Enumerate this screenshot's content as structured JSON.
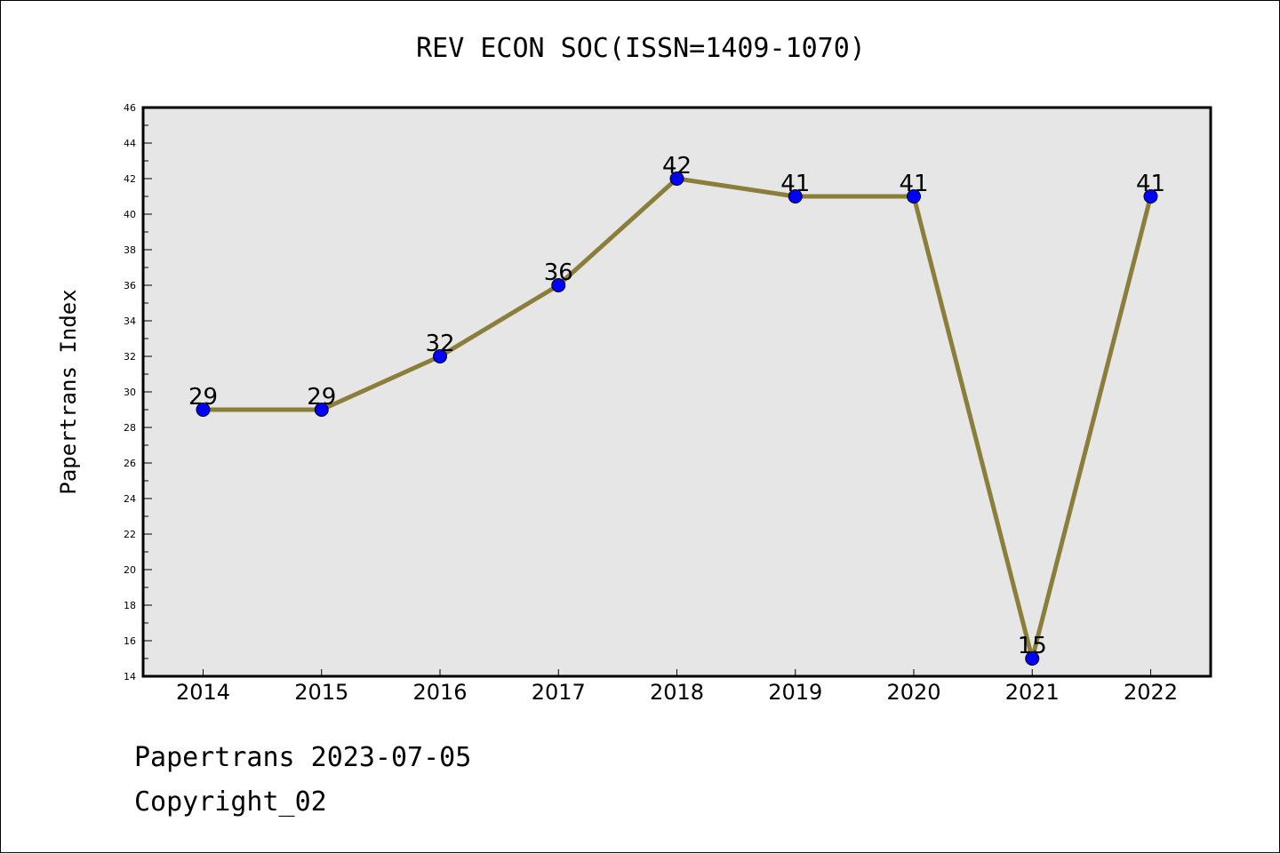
{
  "chart_data": {
    "type": "line",
    "title": "REV ECON SOC(ISSN=1409-1070)",
    "ylabel": "Papertrans Index",
    "xlabel": "",
    "categories": [
      "2014",
      "2015",
      "2016",
      "2017",
      "2018",
      "2019",
      "2020",
      "2021",
      "2022"
    ],
    "values": [
      29,
      29,
      32,
      36,
      42,
      41,
      41,
      15,
      41
    ],
    "ylim": [
      14,
      46
    ],
    "yticks": [
      14,
      16,
      18,
      20,
      22,
      24,
      26,
      28,
      30,
      32,
      34,
      36,
      38,
      40,
      42,
      44,
      46
    ],
    "grid": false,
    "data_labels": true,
    "colors": {
      "line": "#8B7D3A",
      "marker": "#0000FF",
      "plot_bg": "#E6E6E6"
    }
  },
  "footer": {
    "date_text": "Papertrans 2023-07-05",
    "copyright_text": "Copyright_02"
  }
}
